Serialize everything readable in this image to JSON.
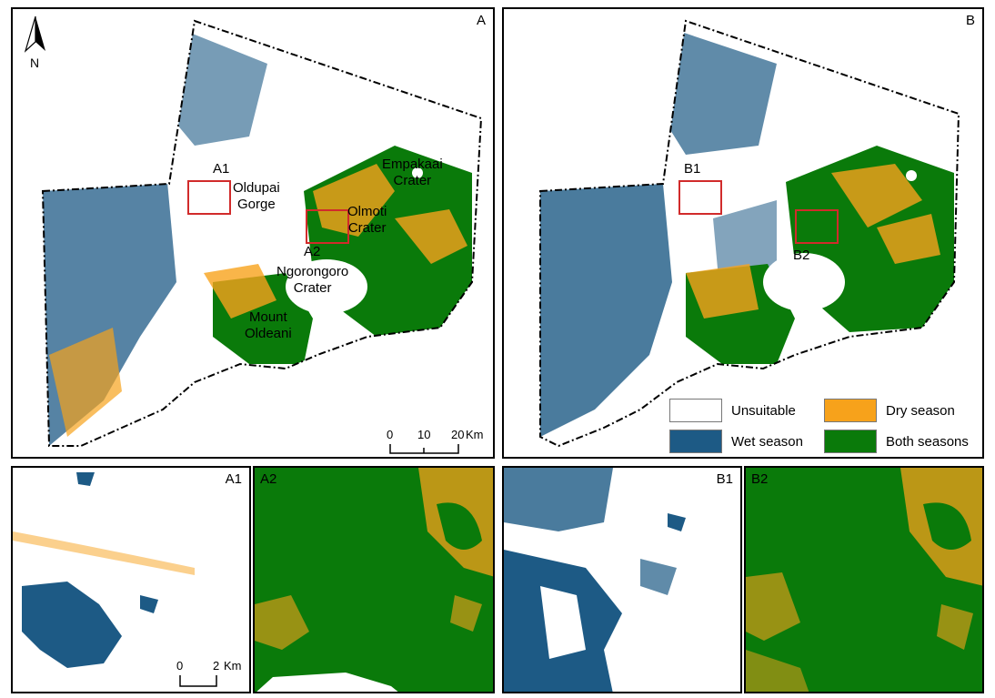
{
  "panels": {
    "A": {
      "label": "A"
    },
    "B": {
      "label": "B"
    },
    "A1": {
      "label": "A1"
    },
    "A2": {
      "label": "A2"
    },
    "B1": {
      "label": "B1"
    },
    "B2": {
      "label": "B2"
    }
  },
  "north_arrow": {
    "label": "N"
  },
  "place_names": {
    "oldupai": "Oldupai\nGorge",
    "empakaai": "Empakaai\nCrater",
    "olmoti": "Olmoti\nCrater",
    "ngorongoro": "Ngorongoro\nCrater",
    "oldeani": "Mount\nOldeani"
  },
  "inset_labels": {
    "a1": "A1",
    "a2": "A2",
    "b1": "B1",
    "b2": "B2"
  },
  "legend": [
    {
      "label": "Unsuitable",
      "color": "#ffffff"
    },
    {
      "label": "Dry season",
      "color": "#f7a21b"
    },
    {
      "label": "Wet season",
      "color": "#1d5a85"
    },
    {
      "label": "Both seasons",
      "color": "#0a7a0a"
    }
  ],
  "scale_main": {
    "ticks": [
      "0",
      "10",
      "20"
    ],
    "unit": "Km"
  },
  "scale_inset": {
    "ticks": [
      "0",
      "2"
    ],
    "unit": "Km"
  },
  "colors": {
    "unsuitable": "#ffffff",
    "dry": "#f7a21b",
    "wet": "#1d5a85",
    "both": "#0a7a0a",
    "box": "#d12b2b"
  }
}
